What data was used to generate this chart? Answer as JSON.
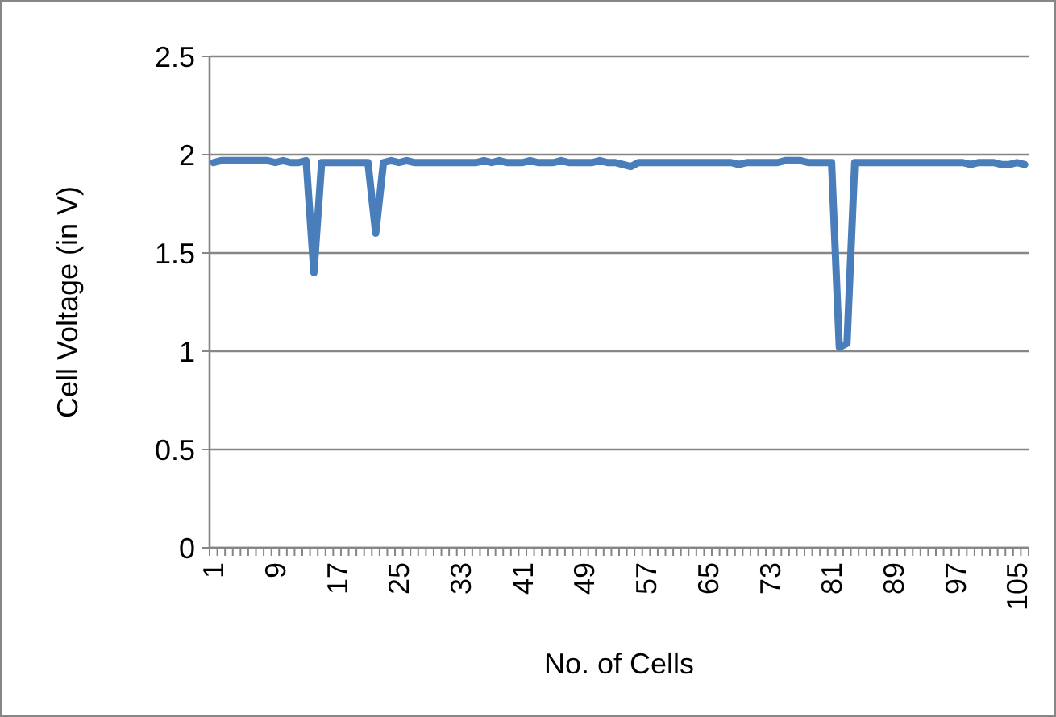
{
  "chart_data": {
    "type": "line",
    "xlabel": "No. of Cells",
    "ylabel": "Cell Voltage (in V)",
    "categories": [
      "1",
      null,
      null,
      null,
      null,
      null,
      null,
      null,
      "9",
      null,
      null,
      null,
      null,
      null,
      null,
      null,
      "17",
      null,
      null,
      null,
      null,
      null,
      null,
      null,
      "25",
      null,
      null,
      null,
      null,
      null,
      null,
      null,
      "33",
      null,
      null,
      null,
      null,
      null,
      null,
      null,
      "41",
      null,
      null,
      null,
      null,
      null,
      null,
      null,
      "49",
      null,
      null,
      null,
      null,
      null,
      null,
      null,
      "57",
      null,
      null,
      null,
      null,
      null,
      null,
      null,
      "65",
      null,
      null,
      null,
      null,
      null,
      null,
      null,
      "73",
      null,
      null,
      null,
      null,
      null,
      null,
      null,
      "81",
      null,
      null,
      null,
      null,
      null,
      null,
      null,
      "89",
      null,
      null,
      null,
      null,
      null,
      null,
      null,
      "97",
      null,
      null,
      null,
      null,
      null,
      null,
      null,
      "105",
      null
    ],
    "series": [
      {
        "color": "#4a7ebb",
        "values": [
          1.96,
          1.97,
          1.97,
          1.97,
          1.97,
          1.97,
          1.97,
          1.97,
          1.96,
          1.97,
          1.96,
          1.96,
          1.97,
          1.4,
          1.96,
          1.96,
          1.96,
          1.96,
          1.96,
          1.96,
          1.96,
          1.6,
          1.96,
          1.97,
          1.96,
          1.97,
          1.96,
          1.96,
          1.96,
          1.96,
          1.96,
          1.96,
          1.96,
          1.96,
          1.96,
          1.97,
          1.96,
          1.97,
          1.96,
          1.96,
          1.96,
          1.97,
          1.96,
          1.96,
          1.96,
          1.97,
          1.96,
          1.96,
          1.96,
          1.96,
          1.97,
          1.96,
          1.96,
          1.95,
          1.94,
          1.96,
          1.96,
          1.96,
          1.96,
          1.96,
          1.96,
          1.96,
          1.96,
          1.96,
          1.96,
          1.96,
          1.96,
          1.96,
          1.95,
          1.96,
          1.96,
          1.96,
          1.96,
          1.96,
          1.97,
          1.97,
          1.97,
          1.96,
          1.96,
          1.96,
          1.96,
          1.02,
          1.04,
          1.96,
          1.96,
          1.96,
          1.96,
          1.96,
          1.96,
          1.96,
          1.96,
          1.96,
          1.96,
          1.96,
          1.96,
          1.96,
          1.96,
          1.96,
          1.95,
          1.96,
          1.96,
          1.96,
          1.95,
          1.95,
          1.96,
          1.95
        ]
      }
    ],
    "ylim": [
      0,
      2.5
    ],
    "yticks": [
      0,
      0.5,
      1,
      1.5,
      2,
      2.5
    ],
    "grid": "y",
    "marker": "none",
    "line_style": "solid"
  }
}
